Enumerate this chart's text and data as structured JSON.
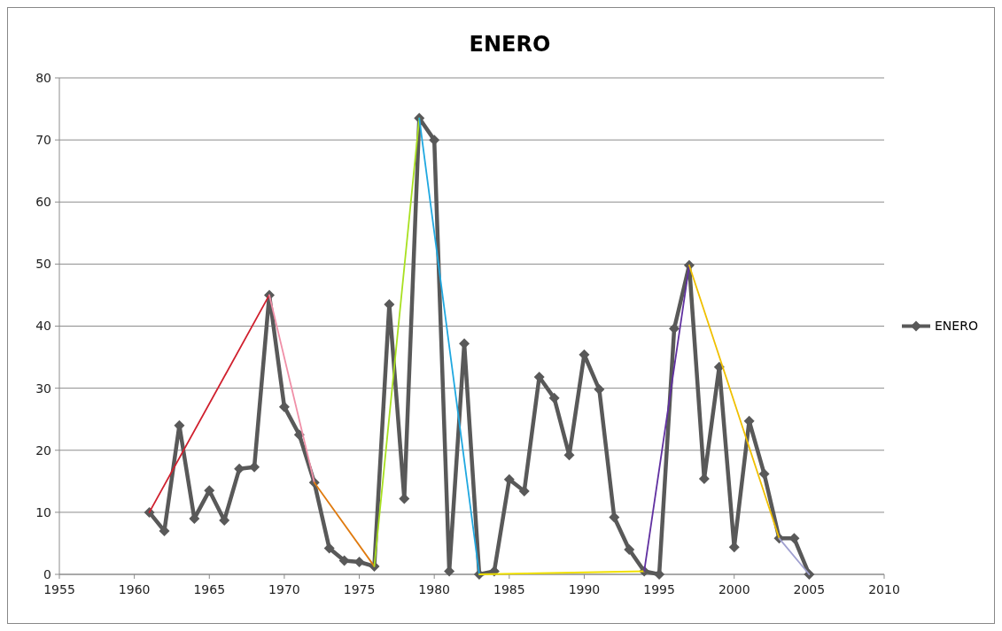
{
  "chart_data": {
    "type": "line",
    "title": "ENERO",
    "xlim": [
      1955,
      2010
    ],
    "xticks": [
      1955,
      1960,
      1965,
      1970,
      1975,
      1980,
      1985,
      1990,
      1995,
      2000,
      2005,
      2010
    ],
    "ylim": [
      0,
      80
    ],
    "yticks": [
      0,
      10,
      20,
      30,
      40,
      50,
      60,
      70,
      80
    ],
    "grid": "y",
    "legend": "right",
    "series": [
      {
        "name": "ENERO",
        "color": "#595959",
        "marker": "diamond",
        "x": [
          1961,
          1962,
          1963,
          1964,
          1965,
          1966,
          1967,
          1968,
          1969,
          1970,
          1971,
          1972,
          1973,
          1974,
          1975,
          1976,
          1977,
          1978,
          1979,
          1980,
          1981,
          1982,
          1983,
          1984,
          1985,
          1986,
          1987,
          1988,
          1989,
          1990,
          1991,
          1992,
          1993,
          1994,
          1995,
          1996,
          1997,
          1998,
          1999,
          2000,
          2001,
          2002,
          2003,
          2004,
          2005
        ],
        "values": [
          10,
          7,
          24,
          9,
          13.5,
          8.7,
          17,
          17.3,
          45,
          27,
          22.5,
          14.8,
          4.2,
          2.2,
          2,
          1.3,
          43.5,
          12.2,
          73.5,
          70,
          0.5,
          37.2,
          0,
          0.5,
          15.3,
          13.4,
          31.8,
          28.4,
          19.2,
          35.4,
          29.8,
          9.2,
          4,
          0.5,
          0,
          39.6,
          49.8,
          15.4,
          33.4,
          4.4,
          24.7,
          16.2,
          5.8,
          5.8,
          0
        ]
      },
      {
        "color": "#d0202e",
        "marker": "none",
        "x": [
          1961,
          1969
        ],
        "values": [
          10,
          45
        ]
      },
      {
        "color": "#f090a8",
        "marker": "none",
        "x": [
          1969,
          1972
        ],
        "values": [
          45,
          14.8
        ]
      },
      {
        "color": "#e07b10",
        "marker": "none",
        "x": [
          1972,
          1976
        ],
        "values": [
          14.8,
          1.3
        ]
      },
      {
        "color": "#a8e020",
        "marker": "none",
        "x": [
          1976,
          1979
        ],
        "values": [
          1.3,
          73.5
        ]
      },
      {
        "color": "#20a8e0",
        "marker": "none",
        "x": [
          1979,
          1983
        ],
        "values": [
          73.5,
          0
        ]
      },
      {
        "color": "#f0e000",
        "marker": "none",
        "x": [
          1983,
          1994
        ],
        "values": [
          0,
          0.5
        ]
      },
      {
        "color": "#6030a0",
        "marker": "none",
        "x": [
          1994,
          1997
        ],
        "values": [
          0.5,
          49.8
        ]
      },
      {
        "color": "#f0c000",
        "marker": "none",
        "x": [
          1997,
          2003
        ],
        "values": [
          49.8,
          5.8
        ]
      },
      {
        "color": "#a0a0d0",
        "marker": "none",
        "x": [
          2003,
          2005
        ],
        "values": [
          5.8,
          0
        ]
      }
    ]
  }
}
